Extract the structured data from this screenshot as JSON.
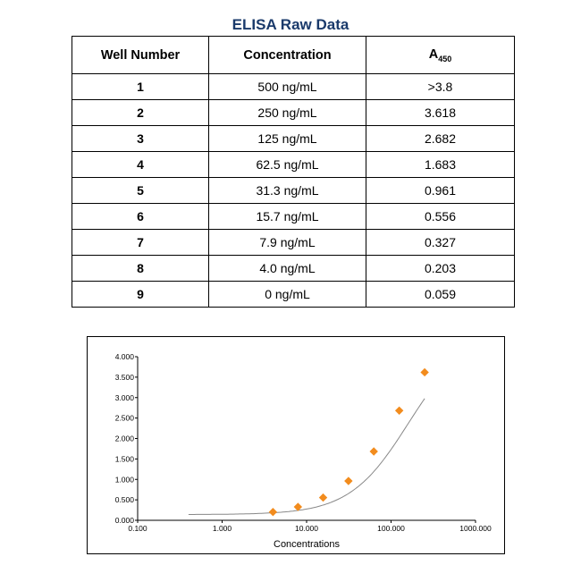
{
  "table_title": "ELISA Raw Data",
  "table": {
    "headers": {
      "well": "Well Number",
      "conc": "Concentration",
      "abs_main": "A",
      "abs_sub": "450"
    },
    "rows": [
      {
        "well": "1",
        "conc": "500 ng/mL",
        "abs": ">3.8"
      },
      {
        "well": "2",
        "conc": "250 ng/mL",
        "abs": "3.618"
      },
      {
        "well": "3",
        "conc": "125 ng/mL",
        "abs": "2.682"
      },
      {
        "well": "4",
        "conc": "62.5 ng/mL",
        "abs": "1.683"
      },
      {
        "well": "5",
        "conc": "31.3 ng/mL",
        "abs": "0.961"
      },
      {
        "well": "6",
        "conc": "15.7 ng/mL",
        "abs": "0.556"
      },
      {
        "well": "7",
        "conc": "7.9 ng/mL",
        "abs": "0.327"
      },
      {
        "well": "8",
        "conc": "4.0 ng/mL",
        "abs": "0.203"
      },
      {
        "well": "9",
        "conc": "0 ng/mL",
        "abs": "0.059"
      }
    ]
  },
  "chart_data": {
    "type": "scatter",
    "xlabel": "Concentrations",
    "ylabel": "",
    "x_scale": "log",
    "xlim": [
      0.1,
      1000
    ],
    "ylim": [
      0,
      4
    ],
    "x_ticks": [
      "0.100",
      "1.000",
      "10.000",
      "100.000",
      "1000.000"
    ],
    "y_ticks": [
      "0.000",
      "0.500",
      "1.000",
      "1.500",
      "2.000",
      "2.500",
      "3.000",
      "3.500",
      "4.000"
    ],
    "series": [
      {
        "x": [
          4.0,
          7.9,
          15.7,
          31.3,
          62.5,
          125,
          250
        ],
        "y": [
          0.203,
          0.327,
          0.556,
          0.961,
          1.683,
          2.682,
          3.618
        ],
        "marker": "diamond",
        "color": "#f28c1e"
      }
    ],
    "fit_curve": {
      "color": "#888888",
      "x_start": 0.4,
      "x_end": 250
    },
    "grid": false
  }
}
